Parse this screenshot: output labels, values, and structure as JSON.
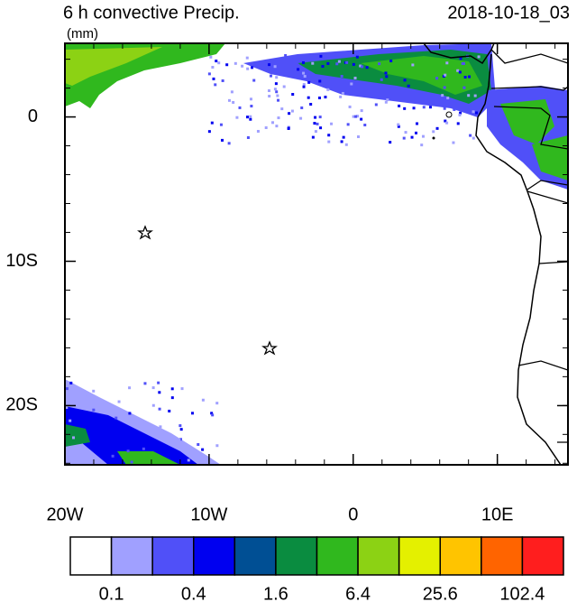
{
  "header": {
    "title": "6 h convective Precip.",
    "units": "(mm)",
    "time": "2018-10-18_03"
  },
  "map": {
    "lon_range": [
      -20,
      14.9
    ],
    "lat_range": [
      -24.1,
      5.1
    ],
    "lat_ticks": [
      {
        "value": 0,
        "label": "0"
      },
      {
        "value": -10,
        "label": "10S"
      },
      {
        "value": -20,
        "label": "20S"
      }
    ],
    "lon_ticks": [
      {
        "value": -20,
        "label": "20W"
      },
      {
        "value": -10,
        "label": "10W"
      },
      {
        "value": 0,
        "label": "0"
      },
      {
        "value": 10,
        "label": "10E"
      }
    ]
  },
  "colorbar": {
    "colors": [
      "#ffffff",
      "#a0a0ff",
      "#5050f8",
      "#0000f0",
      "#004f94",
      "#0a8c40",
      "#30b81e",
      "#8cd214",
      "#e4f000",
      "#ffc400",
      "#ff6400",
      "#ff1e1e"
    ],
    "labels": [
      "0.1",
      "0.4",
      "1.6",
      "6.4",
      "25.6",
      "102.4"
    ]
  }
}
